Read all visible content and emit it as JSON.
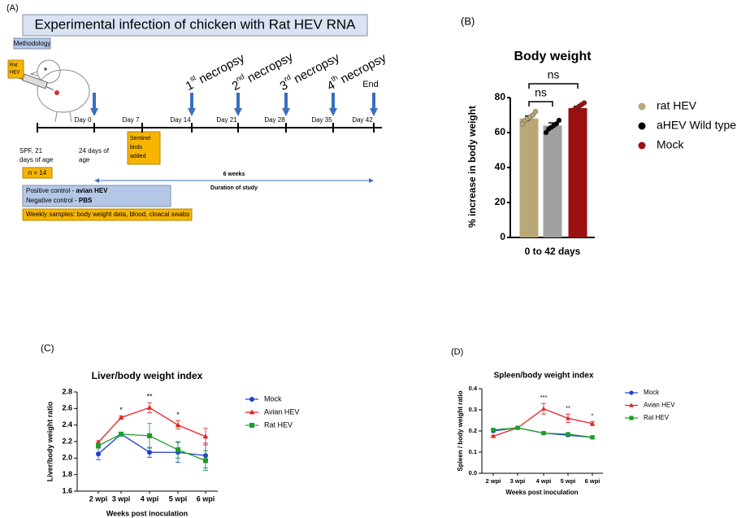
{
  "diagram": {
    "panel_label": "(A)",
    "title": "Experimental infection of chicken with Rat HEV RNA",
    "methodology": "Methodology",
    "syringe_label": [
      "Rat",
      "HEV"
    ],
    "necropsies": [
      {
        "number": "1",
        "suffix": "st",
        "word": "necropsy"
      },
      {
        "number": "2",
        "suffix": "nd",
        "word": "necropsy"
      },
      {
        "number": "3",
        "suffix": "rd",
        "word": "necropsy"
      },
      {
        "number": "4",
        "suffix": "th",
        "word": "necropsy"
      }
    ],
    "end": "End",
    "days": [
      "Day 0",
      "Day 7",
      "Day 14",
      "Day 21",
      "Day 28",
      "Day 35",
      "Day 42"
    ],
    "start_note": [
      "SPF, 21",
      "days of age"
    ],
    "inoculation_note": [
      "24 days of",
      "age"
    ],
    "sentinel": [
      "Sentinel",
      "birds",
      "added"
    ],
    "n": "n = 14",
    "duration": "6 weeks",
    "duration_label": "Duration of study",
    "controls": [
      {
        "text": "Positive control - ",
        "bold": "avian HEV"
      },
      {
        "text": "Negative control - ",
        "bold": "PBS"
      }
    ],
    "samples": "Weekly samples: body weight data, blood, cloacal swabs"
  },
  "chart_data": [
    {
      "type": "bar",
      "panel_label": "(B)",
      "title": "Body weight",
      "y_label": "% increase in body weight",
      "categories": [
        "0 to 42 days"
      ],
      "ylim": [
        0,
        80
      ],
      "yticks": [
        0,
        20,
        40,
        60,
        80
      ],
      "annotations": [
        "ns",
        "ns"
      ],
      "series": [
        {
          "name": "rat HEV",
          "color": "#b8a878",
          "marker_color": "#b8a878",
          "values": [
            68
          ],
          "errors": [
            1.5
          ],
          "points": [
            65,
            67,
            68,
            69,
            70,
            72
          ]
        },
        {
          "name": "aHEV Wild type",
          "color": "#a0a0a0",
          "marker_color": "#000000",
          "values": [
            64
          ],
          "errors": [
            1.5
          ],
          "points": [
            60,
            62,
            63,
            64,
            65,
            67
          ]
        },
        {
          "name": "Mock",
          "color": "#9b1010",
          "marker_color": "#9b1010",
          "values": [
            74
          ],
          "errors": [
            1
          ],
          "points": [
            72,
            73,
            74,
            75,
            76,
            77
          ]
        }
      ]
    },
    {
      "type": "line",
      "panel_label": "(C)",
      "title": "Liver/body weight index",
      "x_label": "Weeks post inoculation",
      "y_label": "Liver/body weight ratio",
      "categories": [
        "2 wpi",
        "3 wpi",
        "4 wpi",
        "5 wpi",
        "6 wpi"
      ],
      "ylim": [
        1.6,
        2.8
      ],
      "yticks": [
        1.6,
        1.8,
        {
          "value": 2,
          "label": "2.0"
        },
        2.2,
        2.4,
        2.6,
        2.8
      ],
      "annotations": [
        null,
        "*",
        "**",
        "*",
        null
      ],
      "series": [
        {
          "name": "Mock",
          "color": "#1f3fcf",
          "marker": "circle",
          "values": [
            2.05,
            2.29,
            2.07,
            2.07,
            2.03
          ],
          "errors": [
            0.07,
            0.02,
            0.06,
            0.12,
            0.15
          ]
        },
        {
          "name": "Avian HEV",
          "color": "#e8201f",
          "marker": "triangle",
          "values": [
            2.19,
            2.49,
            2.61,
            2.4,
            2.26
          ],
          "errors": [
            0.02,
            0.02,
            0.06,
            0.05,
            0.1
          ]
        },
        {
          "name": "Rat HEV",
          "color": "#1a9e2a",
          "marker": "square",
          "values": [
            2.15,
            2.29,
            2.27,
            2.1,
            1.97
          ],
          "errors": [
            0.03,
            0.02,
            0.15,
            0.1,
            0.12
          ]
        }
      ]
    },
    {
      "type": "line",
      "panel_label": "(D)",
      "title": "Spleen/body weight index",
      "x_label": "Weeks post inoculation",
      "y_label": "Spleen / body weight ratio",
      "categories": [
        "2 wpi",
        "3 wpi",
        "4 wpi",
        "5 wpi",
        "6 wpi"
      ],
      "ylim": [
        0,
        0.4
      ],
      "yticks": [
        {
          "value": 0,
          "label": "0.0"
        },
        0.1,
        0.2,
        0.3,
        0.4
      ],
      "annotations": [
        null,
        null,
        "***",
        "**",
        "*"
      ],
      "series": [
        {
          "name": "Mock",
          "color": "#1f3fcf",
          "marker": "circle",
          "values": [
            0.2,
            0.215,
            0.19,
            0.18,
            0.17
          ],
          "errors": [
            0.005,
            0.004,
            0.005,
            0.006,
            0.005
          ]
        },
        {
          "name": "Avian HEV",
          "color": "#e8201f",
          "marker": "triangle",
          "values": [
            0.175,
            0.215,
            0.305,
            0.26,
            0.235
          ],
          "errors": [
            0.005,
            0.005,
            0.025,
            0.02,
            0.01
          ]
        },
        {
          "name": "Rat HEV",
          "color": "#1a9e2a",
          "marker": "square",
          "values": [
            0.205,
            0.215,
            0.19,
            0.185,
            0.17
          ],
          "errors": [
            0.005,
            0.004,
            0.005,
            0.006,
            0.005
          ]
        }
      ]
    }
  ]
}
